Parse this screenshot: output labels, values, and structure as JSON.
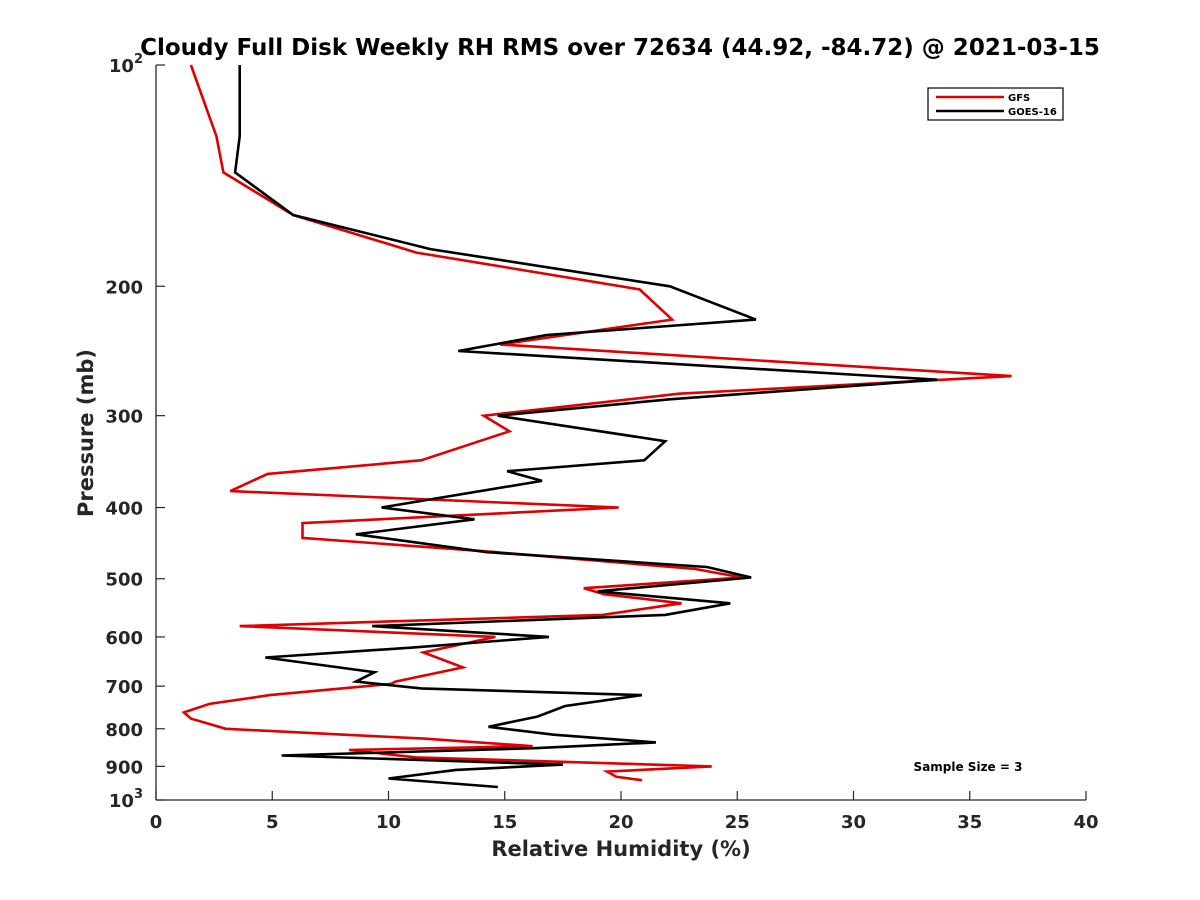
{
  "chart_data": {
    "type": "line",
    "title": "Cloudy Full Disk Weekly RH RMS over 72634 (44.92, -84.72) @ 2021-03-15",
    "xlabel": "Relative Humidity (%)",
    "ylabel": "Pressure (mb)",
    "xlim": [
      0,
      40
    ],
    "ylim": [
      100,
      1000
    ],
    "y_scale": "log",
    "y_reversed": true,
    "x_ticks": [
      0,
      5,
      10,
      15,
      20,
      25,
      30,
      35,
      40
    ],
    "y_ticks": [
      {
        "value": 100,
        "base": "10",
        "exp": "2"
      },
      {
        "value": 200,
        "label": "200"
      },
      {
        "value": 300,
        "label": "300"
      },
      {
        "value": 400,
        "label": "400"
      },
      {
        "value": 500,
        "label": "500"
      },
      {
        "value": 600,
        "label": "600"
      },
      {
        "value": 700,
        "label": "700"
      },
      {
        "value": 800,
        "label": "800"
      },
      {
        "value": 900,
        "label": "900"
      },
      {
        "value": 1000,
        "base": "10",
        "exp": "3"
      }
    ],
    "grid": false,
    "legend_position": "top-right",
    "annotation": "Sample Size = 3",
    "series": [
      {
        "name": "GFS",
        "color": "#e00000",
        "points": [
          [
            1.5,
            100
          ],
          [
            2.6,
            125
          ],
          [
            2.9,
            140
          ],
          [
            5.9,
            160
          ],
          [
            11.2,
            180
          ],
          [
            20.8,
            202
          ],
          [
            22.2,
            222
          ],
          [
            14.8,
            240
          ],
          [
            36.8,
            265
          ],
          [
            22.5,
            280
          ],
          [
            14.1,
            300
          ],
          [
            15.2,
            315
          ],
          [
            11.4,
            345
          ],
          [
            4.8,
            360
          ],
          [
            3.2,
            380
          ],
          [
            19.9,
            400
          ],
          [
            6.3,
            420
          ],
          [
            6.3,
            440
          ],
          [
            14.6,
            460
          ],
          [
            23.2,
            485
          ],
          [
            25.2,
            498
          ],
          [
            18.4,
            515
          ],
          [
            19.3,
            525
          ],
          [
            22.6,
            540
          ],
          [
            19.2,
            560
          ],
          [
            3.6,
            580
          ],
          [
            14.6,
            600
          ],
          [
            11.5,
            630
          ],
          [
            13.2,
            660
          ],
          [
            10.3,
            690
          ],
          [
            10.1,
            695
          ],
          [
            9.1,
            700
          ],
          [
            4.9,
            720
          ],
          [
            2.3,
            740
          ],
          [
            1.2,
            760
          ],
          [
            1.5,
            775
          ],
          [
            3.0,
            800
          ],
          [
            11.5,
            825
          ],
          [
            16.2,
            845
          ],
          [
            8.3,
            855
          ],
          [
            11.2,
            875
          ],
          [
            23.9,
            900
          ],
          [
            19.4,
            915
          ],
          [
            19.8,
            930
          ],
          [
            20.9,
            940
          ]
        ]
      },
      {
        "name": "GOES-16",
        "color": "#000000",
        "points": [
          [
            3.6,
            100
          ],
          [
            3.6,
            125
          ],
          [
            3.4,
            140
          ],
          [
            5.9,
            160
          ],
          [
            11.8,
            178
          ],
          [
            22.1,
            200
          ],
          [
            25.8,
            222
          ],
          [
            16.8,
            233
          ],
          [
            13.0,
            245
          ],
          [
            33.6,
            268
          ],
          [
            22.1,
            285
          ],
          [
            14.7,
            300
          ],
          [
            21.9,
            325
          ],
          [
            21.0,
            345
          ],
          [
            15.1,
            357
          ],
          [
            16.6,
            368
          ],
          [
            9.7,
            400
          ],
          [
            13.7,
            415
          ],
          [
            8.6,
            435
          ],
          [
            14.2,
            460
          ],
          [
            23.7,
            482
          ],
          [
            25.6,
            498
          ],
          [
            19.0,
            520
          ],
          [
            24.7,
            540
          ],
          [
            21.9,
            560
          ],
          [
            9.3,
            580
          ],
          [
            16.9,
            600
          ],
          [
            11.1,
            620
          ],
          [
            4.7,
            640
          ],
          [
            9.4,
            670
          ],
          [
            8.6,
            690
          ],
          [
            11.4,
            705
          ],
          [
            20.9,
            720
          ],
          [
            17.6,
            745
          ],
          [
            16.4,
            770
          ],
          [
            14.3,
            795
          ],
          [
            17.1,
            815
          ],
          [
            21.5,
            835
          ],
          [
            16.4,
            850
          ],
          [
            5.4,
            870
          ],
          [
            17.5,
            895
          ],
          [
            12.9,
            910
          ],
          [
            10.0,
            935
          ],
          [
            14.7,
            960
          ]
        ]
      }
    ]
  }
}
